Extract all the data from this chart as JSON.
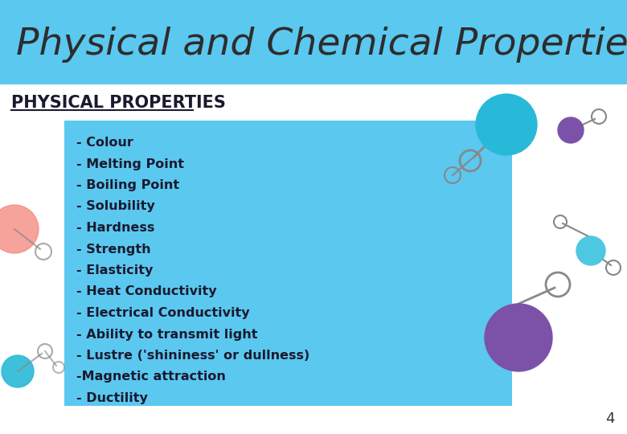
{
  "title": "Physical and Chemical Properties",
  "title_color": "#2d2d2d",
  "title_bg": "#5bc8f0",
  "section_heading": "PHYSICAL PROPERTIES",
  "section_heading_color": "#1a1a2e",
  "content_bg": "#5bc8f0",
  "white_bg": "#ffffff",
  "items": [
    "- Colour",
    "- Melting Point",
    "- Boiling Point",
    "- Solubility",
    "- Hardness",
    "- Strength",
    "- Elasticity",
    "- Heat Conductivity",
    "- Electrical Conductivity",
    "- Ability to transmit light",
    "- Lustre ('shininess' or dullness)",
    "-Magnetic attraction",
    "- Ductility"
  ],
  "item_color": "#1a1a2e",
  "page_number": "4",
  "page_num_color": "#333333",
  "teal": "#29b9d8",
  "purple": "#7b52a8",
  "light_teal": "#4dc8e0",
  "gray": "#888888",
  "pink": "#f4857a"
}
